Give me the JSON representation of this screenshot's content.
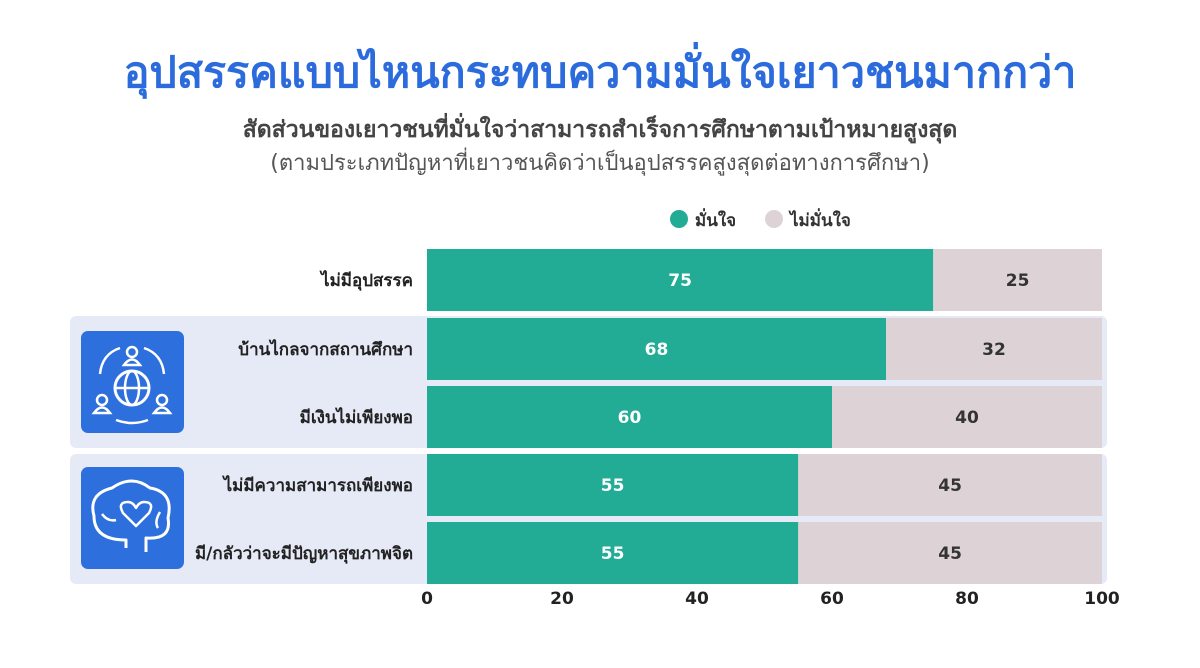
{
  "title": "อุปสรรคแบบไหนกระทบความมั่นใจเยาวชนมากกว่า",
  "subtitle": "สัดส่วนของเยาวชนที่มั่นใจว่าสามารถสำเร็จการศึกษาตามเป้าหมายสูงสุด",
  "subtitle2": "(ตามประเภทปัญหาที่เยาวชนคิดว่าเป็นอุปสรรคสูงสุดต่อทางการศึกษา)",
  "colors": {
    "confident": "#22ab95",
    "not_confident": "#ddd3d6",
    "group_bg": "#e6eaf7",
    "icon_bg": "#2d6fdc"
  },
  "groups": [
    {
      "icon": "globe-people-icon",
      "categories": [
        "บ้านไกลจากสถานศึกษา",
        "มีเงินไม่เพียงพอ"
      ]
    },
    {
      "icon": "brain-heart-icon",
      "categories": [
        "ไม่มีความสามารถเพียงพอ",
        "มี/กลัวว่าจะมีปัญหาสุขภาพจิต"
      ]
    }
  ],
  "chart_data": {
    "type": "bar",
    "orientation": "horizontal",
    "stacked": true,
    "title": "อุปสรรคแบบไหนกระทบความมั่นใจเยาวชนมากกว่า",
    "subtitle": "สัดส่วนของเยาวชนที่มั่นใจว่าสามารถสำเร็จการศึกษาตามเป้าหมายสูงสุด (ตามประเภทปัญหาที่เยาวชนคิดว่าเป็นอุปสรรคสูงสุดต่อทางการศึกษา)",
    "categories": [
      "ไม่มีอุปสรรค",
      "บ้านไกลจากสถานศึกษา",
      "มีเงินไม่เพียงพอ",
      "ไม่มีความสามารถเพียงพอ",
      "มี/กลัวว่าจะมีปัญหาสุขภาพจิต"
    ],
    "series": [
      {
        "name": "มั่นใจ",
        "values": [
          75,
          68,
          60,
          55,
          55
        ]
      },
      {
        "name": "ไม่มั่นใจ",
        "values": [
          25,
          32,
          40,
          45,
          45
        ]
      }
    ],
    "xlim": [
      0,
      100
    ],
    "xticks": [
      "0",
      "20",
      "40",
      "60",
      "80",
      "100"
    ],
    "legend": "top-right",
    "grid": false
  }
}
